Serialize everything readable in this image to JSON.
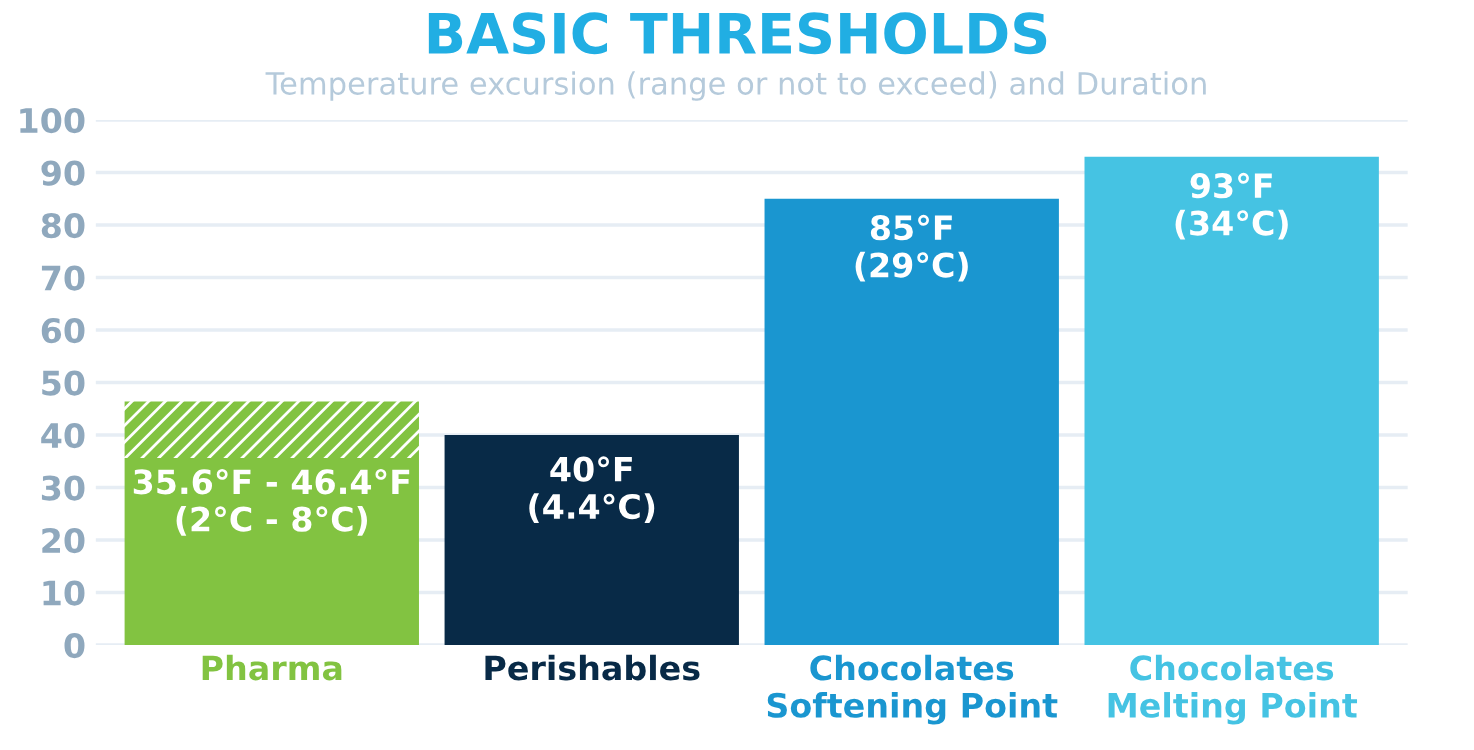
{
  "chart_data": {
    "type": "bar",
    "title": "BASIC THRESHOLDS",
    "subtitle": "Temperature excursion (range or not to exceed) and Duration",
    "categories": [
      "Pharma",
      "Perishables",
      "Chocolates\nSoftening Point",
      "Chocolates\nMelting Point"
    ],
    "stacked": true,
    "series": [
      {
        "colors": [
          "#82c341",
          "#082a47",
          "#1a96d0",
          "#45c3e3"
        ],
        "values": [
          35.6,
          40,
          85,
          93
        ],
        "value_labels": [
          "35.6°F - 46.4°F\n(2°C - 8°C)",
          "40°F\n(4.4°C)",
          "85°F\n(29°C)",
          "93°F\n(34°C)"
        ]
      },
      {
        "color": "#82c341",
        "values": [
          10.8,
          null,
          null,
          null
        ]
      }
    ],
    "ylim": [
      0,
      100
    ],
    "yticks": [
      0,
      10,
      20,
      30,
      40,
      50,
      60,
      70,
      80,
      90,
      100
    ],
    "grid": "y",
    "legend": false
  }
}
